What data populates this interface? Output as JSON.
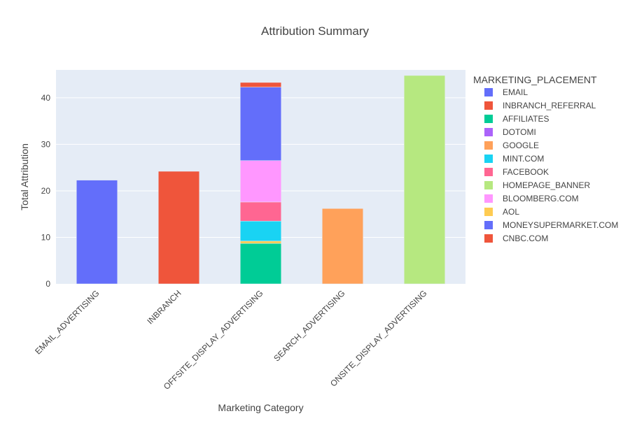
{
  "chart_data": {
    "type": "bar",
    "barmode": "stack",
    "title": "Attribution Summary",
    "xlabel": "Marketing Category",
    "ylabel": "Total Attribution",
    "ylim": [
      0,
      46
    ],
    "yticks": [
      0,
      10,
      20,
      30,
      40
    ],
    "grid": true,
    "legend_title": "MARKETING_PLACEMENT",
    "legend_position": "right",
    "categories": [
      "EMAIL_ADVERTISING",
      "INBRANCH",
      "OFFSITE_DISPLAY_ADVERTISING",
      "SEARCH_ADVERTISING",
      "ONSITE_DISPLAY_ADVERTISING"
    ],
    "series": [
      {
        "name": "EMAIL",
        "color": "#636efa",
        "values": [
          22.3,
          0,
          0,
          0,
          0
        ]
      },
      {
        "name": "INBRANCH_REFERRAL",
        "color": "#ef553b",
        "values": [
          0,
          24.2,
          0,
          0,
          0
        ]
      },
      {
        "name": "AFFILIATES",
        "color": "#00cc96",
        "values": [
          0,
          0,
          8.7,
          0,
          0
        ]
      },
      {
        "name": "DOTOMI",
        "color": "#ab63fa",
        "values": [
          0,
          0,
          0,
          0,
          0
        ]
      },
      {
        "name": "GOOGLE",
        "color": "#ffa15a",
        "values": [
          0,
          0,
          0,
          16.2,
          0
        ]
      },
      {
        "name": "MINT.COM",
        "color": "#19d3f3",
        "values": [
          0,
          0,
          4.3,
          0,
          0
        ]
      },
      {
        "name": "FACEBOOK",
        "color": "#ff6692",
        "values": [
          0,
          0,
          4.1,
          0,
          0
        ]
      },
      {
        "name": "HOMEPAGE_BANNER",
        "color": "#b6e880",
        "values": [
          0,
          0,
          0,
          0,
          44.8
        ]
      },
      {
        "name": "BLOOMBERG.COM",
        "color": "#ff97ff",
        "values": [
          0,
          0,
          8.9,
          0,
          0
        ]
      },
      {
        "name": "AOL",
        "color": "#fecb52",
        "values": [
          0,
          0,
          0.5,
          0,
          0
        ]
      },
      {
        "name": "MONEYSUPERMARKET.COM",
        "color": "#636efa",
        "values": [
          0,
          0,
          15.8,
          0,
          0
        ]
      },
      {
        "name": "CNBC.COM",
        "color": "#ef553b",
        "values": [
          0,
          0,
          1.0,
          0,
          0
        ]
      }
    ],
    "stack_order": [
      [
        "EMAIL"
      ],
      [
        "INBRANCH_REFERRAL"
      ],
      [
        "AFFILIATES",
        "AOL",
        "MINT.COM",
        "FACEBOOK",
        "BLOOMBERG.COM",
        "MONEYSUPERMARKET.COM",
        "CNBC.COM"
      ],
      [
        "GOOGLE"
      ],
      [
        "HOMEPAGE_BANNER"
      ]
    ]
  }
}
